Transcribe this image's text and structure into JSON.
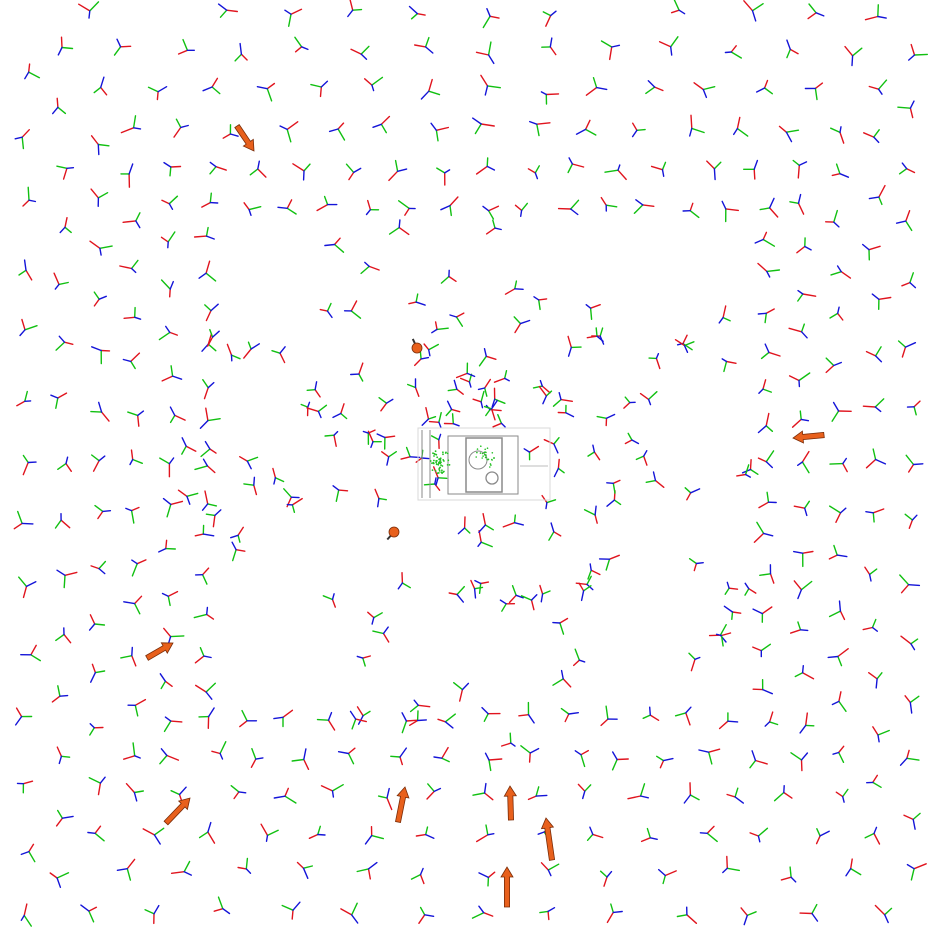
{
  "scene": {
    "background": "#ffffff",
    "axis_colors": {
      "x": "#e0141e",
      "y": "#11c011",
      "z": "#1414d8"
    },
    "arrow_color": "#e8601c",
    "arrow_edge_color": "#7a2c08",
    "object_color": "#8a8a8a",
    "object_highlight_color": "#22c022",
    "camera_count": 420,
    "highlighted_poses": 11
  }
}
